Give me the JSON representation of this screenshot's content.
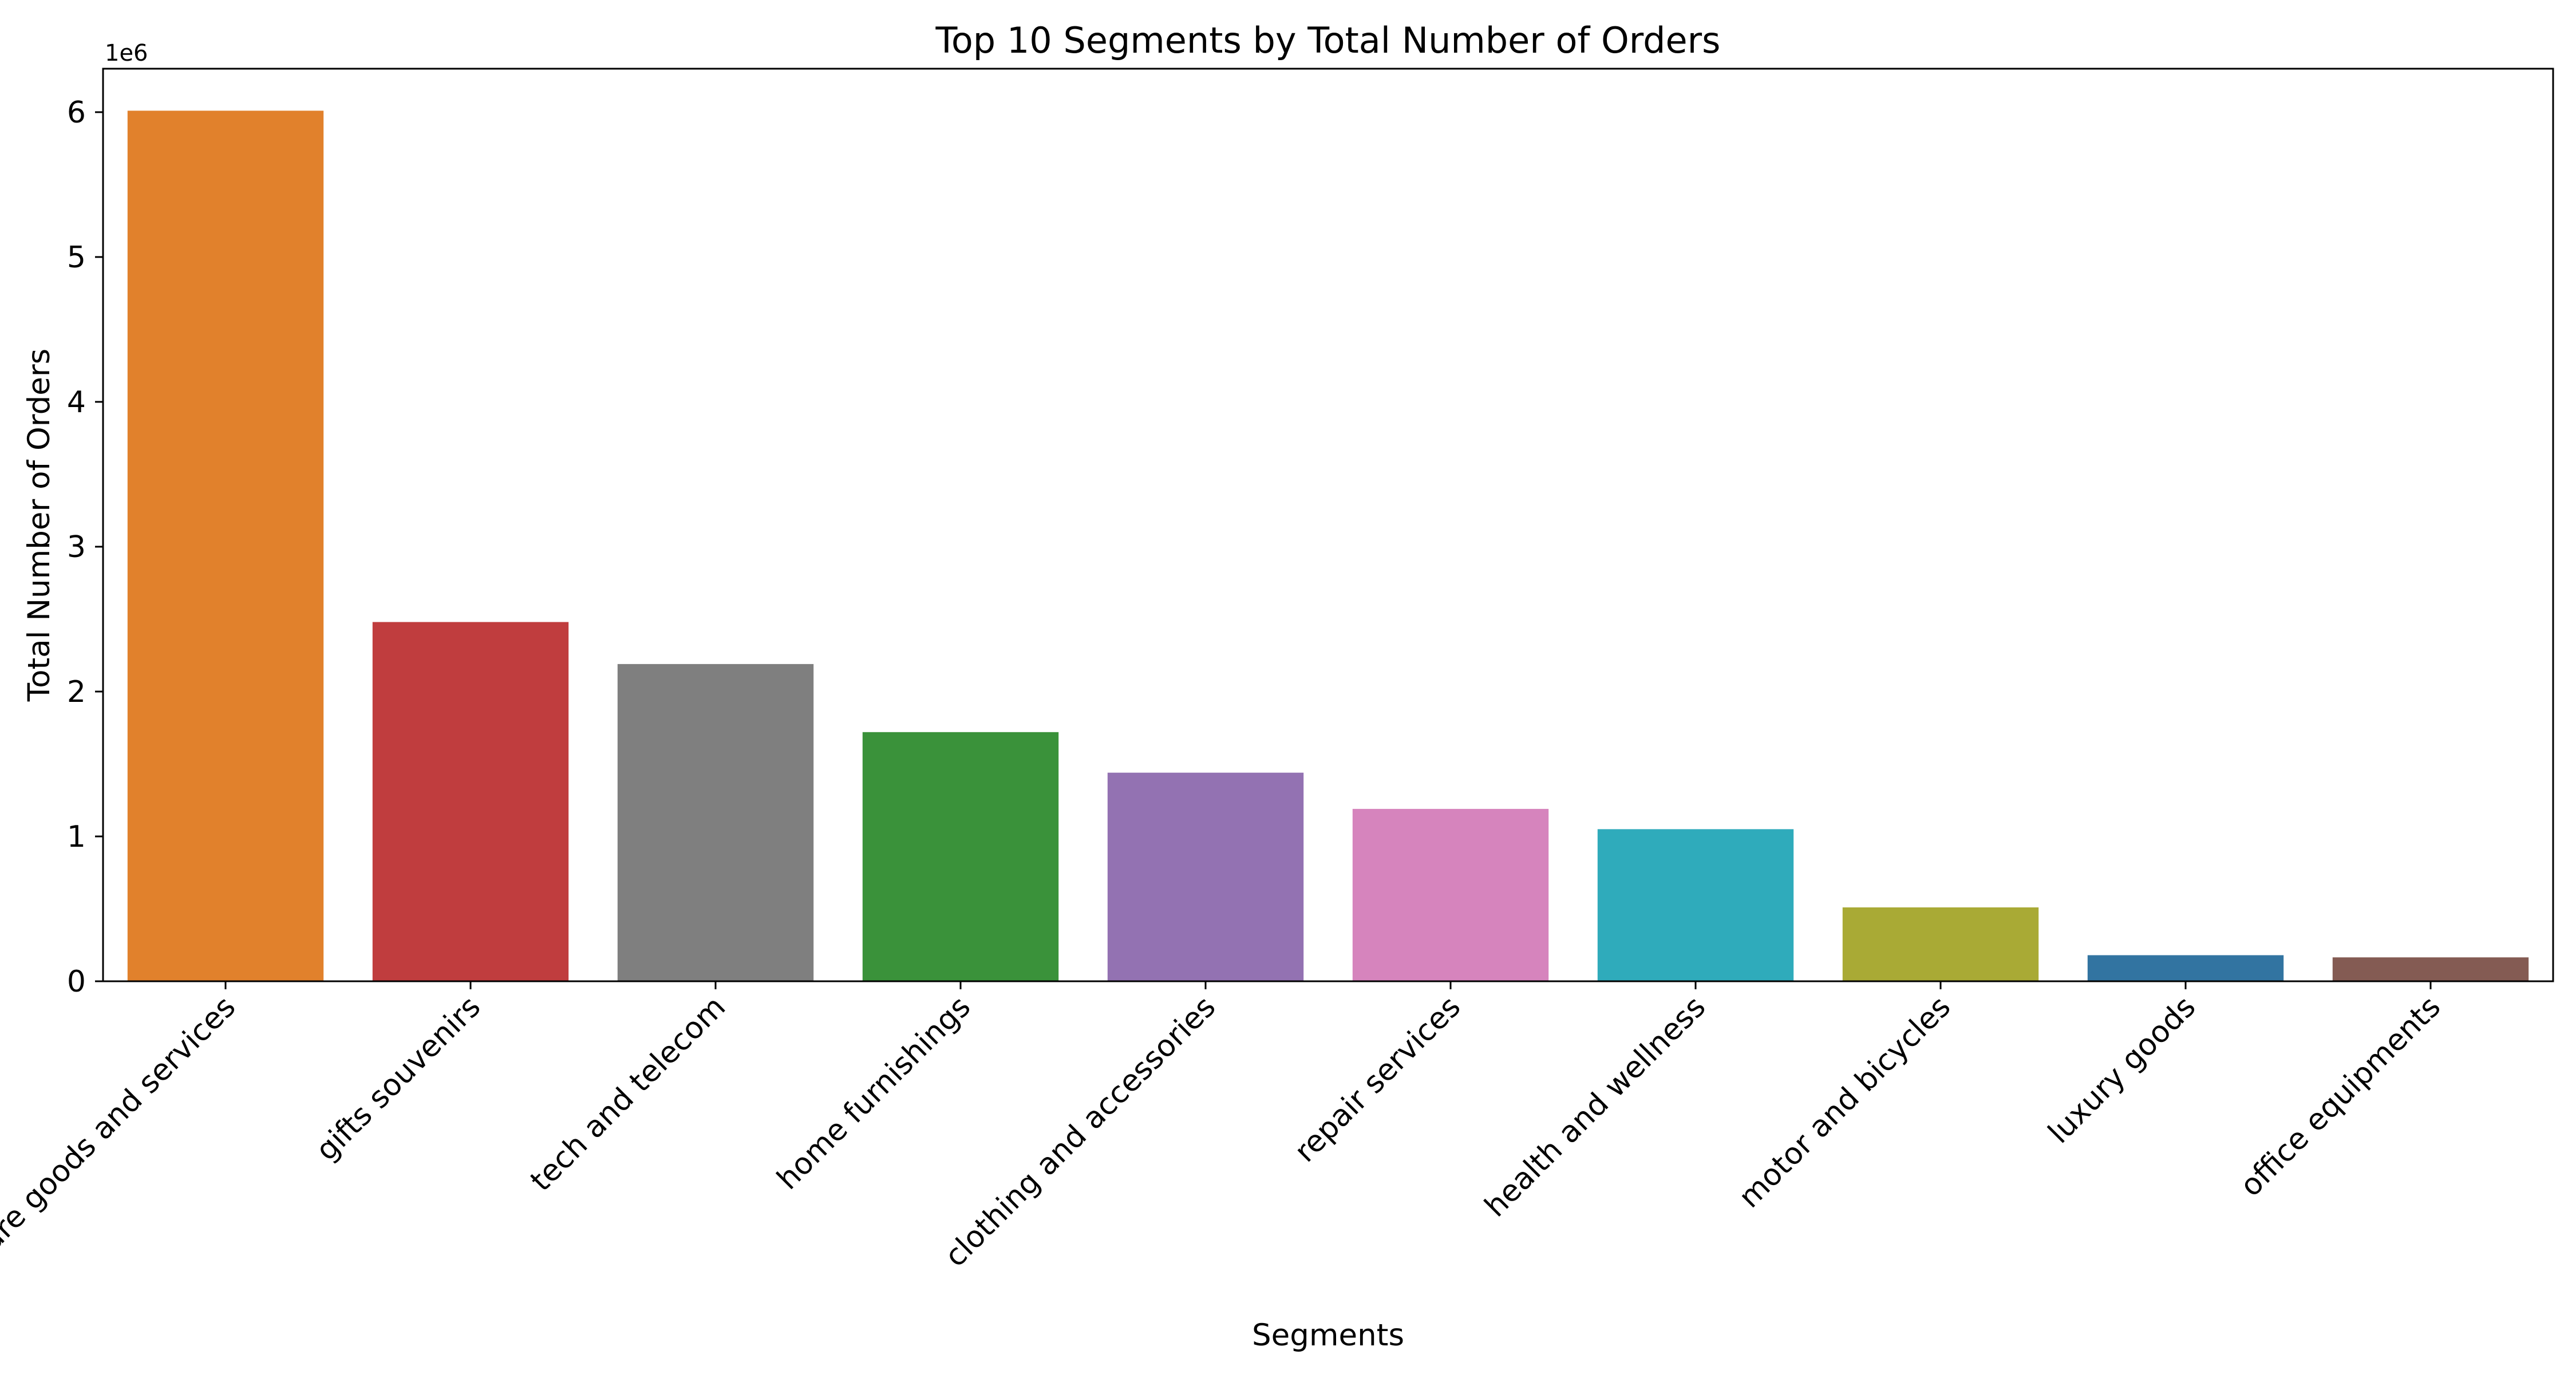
{
  "chart_data": {
    "type": "bar",
    "title": "Top 10 Segments by Total Number of Orders",
    "xlabel": "Segments",
    "ylabel": "Total Number of Orders",
    "y_offset_label": "1e6",
    "y_scale": 1000000,
    "ylim": [
      0,
      6.3
    ],
    "yticks": [
      0,
      1,
      2,
      3,
      4,
      5,
      6
    ],
    "grid": false,
    "legend": "none",
    "categories": [
      "leisure goods and services",
      "gifts souvenirs",
      "tech and telecom",
      "home furnishings",
      "clothing and accessories",
      "repair services",
      "health and wellness",
      "motor and bicycles",
      "luxury goods",
      "office equipments"
    ],
    "values": [
      6010000,
      2480000,
      2190000,
      1720000,
      1440000,
      1190000,
      1050000,
      510000,
      180000,
      165000
    ],
    "colors": [
      "#e1812c",
      "#c03d3e",
      "#7f7f7f",
      "#3a923a",
      "#9372b2",
      "#d684bd",
      "#2fabbb",
      "#a9aa35",
      "#3274a1",
      "#845b53"
    ]
  }
}
